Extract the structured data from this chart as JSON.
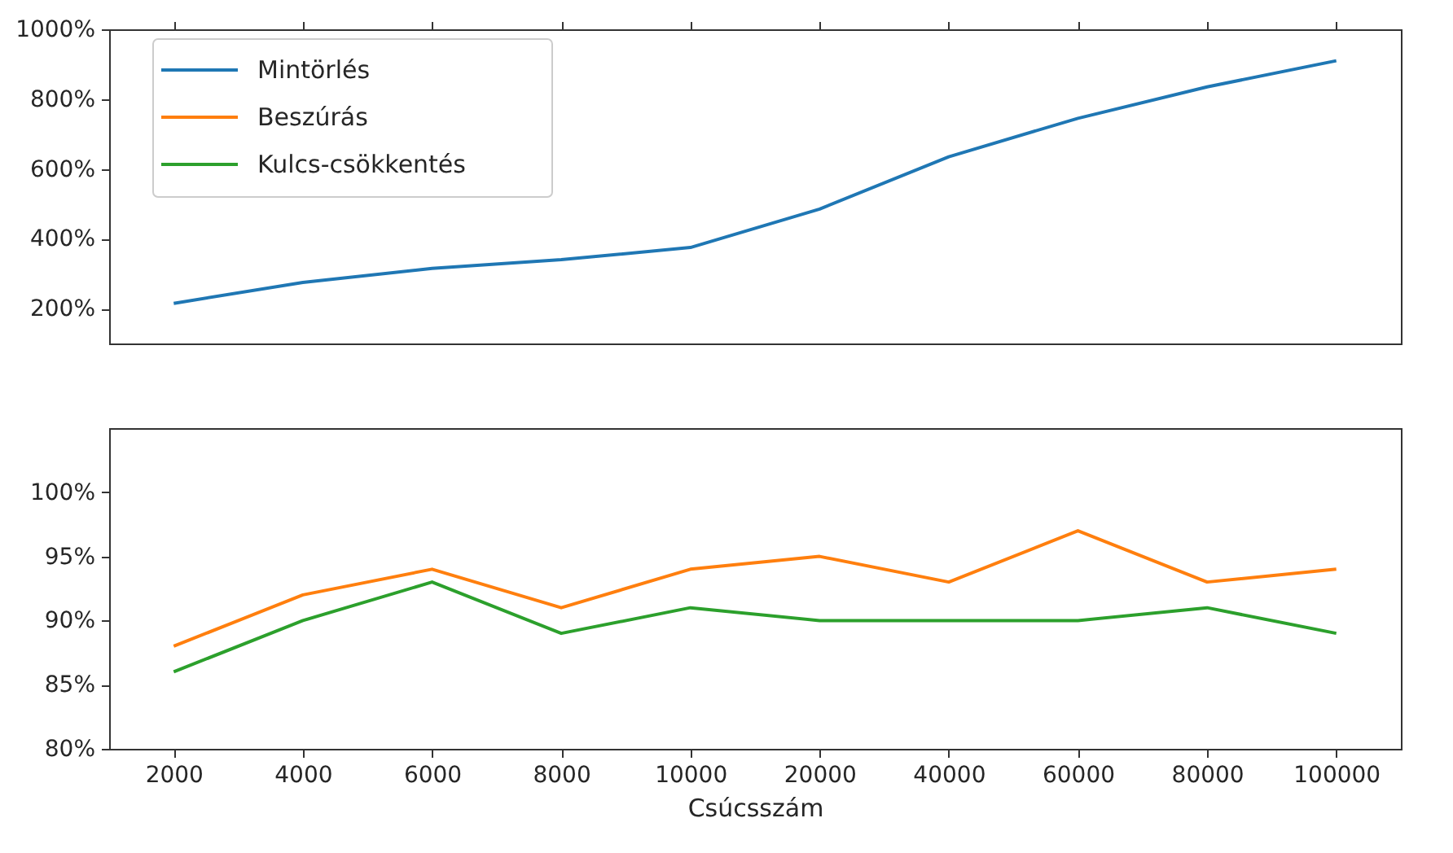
{
  "chart_data": [
    {
      "type": "line",
      "categories": [
        "2000",
        "4000",
        "6000",
        "8000",
        "10000",
        "20000",
        "40000",
        "60000",
        "80000",
        "100000"
      ],
      "series": [
        {
          "name": "Mintörlés",
          "color": "#1f77b4",
          "values": [
            215,
            275,
            315,
            340,
            375,
            485,
            635,
            745,
            835,
            910
          ]
        }
      ],
      "ylim": [
        100,
        1000
      ],
      "yticks": [
        {
          "value": 200,
          "label": "200%"
        },
        {
          "value": 400,
          "label": "400%"
        },
        {
          "value": 600,
          "label": "600%"
        },
        {
          "value": 800,
          "label": "800%"
        },
        {
          "value": 1000,
          "label": "1000%"
        }
      ],
      "tick_labels": "y",
      "legend": "top left",
      "grid": false
    },
    {
      "type": "line",
      "xlabel": "Csúcsszám",
      "categories": [
        "2000",
        "4000",
        "6000",
        "8000",
        "10000",
        "20000",
        "40000",
        "60000",
        "80000",
        "100000"
      ],
      "series": [
        {
          "name": "Beszúrás",
          "color": "#ff7f0e",
          "values": [
            88,
            92,
            94,
            91,
            94,
            95,
            93,
            97,
            93,
            94
          ]
        },
        {
          "name": "Kulcs-csökkentés",
          "color": "#2ca02c",
          "values": [
            86,
            90,
            93,
            89,
            91,
            90,
            90,
            90,
            91,
            89
          ]
        }
      ],
      "ylim": [
        80,
        105
      ],
      "yticks": [
        {
          "value": 80,
          "label": "80%"
        },
        {
          "value": 85,
          "label": "85%"
        },
        {
          "value": 90,
          "label": "90%"
        },
        {
          "value": 95,
          "label": "95%"
        },
        {
          "value": 100,
          "label": "100%"
        }
      ],
      "grid": false
    }
  ]
}
